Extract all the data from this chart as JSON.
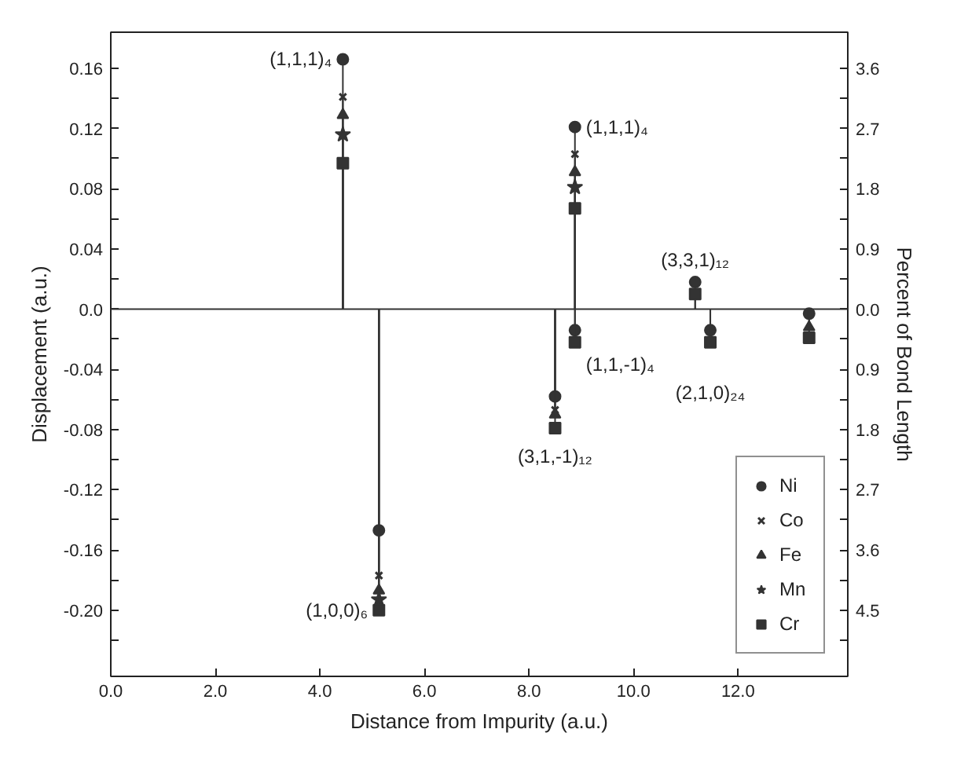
{
  "chart_data": {
    "type": "lollipop",
    "xlabel": "Distance from Impurity (a.u.)",
    "ylabel": "Displacement (a.u.)",
    "y2label": "Percent of Bond Length",
    "x": [
      4.44,
      5.13,
      8.5,
      8.88,
      8.88,
      11.18,
      11.47,
      13.36
    ],
    "series": [
      {
        "name": "Ni",
        "color": "#333333",
        "marker": "circle",
        "values": [
          0.166,
          -0.147,
          -0.058,
          0.121,
          -0.014,
          0.018,
          -0.014,
          -0.003
        ]
      },
      {
        "name": "Co",
        "color": "#333333",
        "marker": "cross",
        "values": [
          0.141,
          -0.177,
          -0.067,
          0.103,
          null,
          null,
          null,
          null
        ]
      },
      {
        "name": "Fe",
        "color": "#333333",
        "marker": "triangle",
        "values": [
          0.129,
          -0.187,
          -0.07,
          0.091,
          null,
          null,
          null,
          -0.012
        ]
      },
      {
        "name": "Mn",
        "color": "#333333",
        "marker": "star",
        "values": [
          0.116,
          -0.193,
          null,
          0.081,
          null,
          null,
          null,
          null
        ]
      },
      {
        "name": "Cr",
        "color": "#333333",
        "marker": "square",
        "values": [
          0.097,
          -0.2,
          -0.079,
          0.067,
          -0.022,
          0.01,
          -0.022,
          -0.019
        ]
      }
    ],
    "xlim": [
      0,
      14.1
    ],
    "ylim": [
      -0.244,
      0.184
    ],
    "y2lim": [
      -5.49,
      4.14
    ],
    "xticks": [
      {
        "value": 0,
        "label": "0.0"
      },
      {
        "value": 2,
        "label": "2.0"
      },
      {
        "value": 4,
        "label": "4.0"
      },
      {
        "value": 6,
        "label": "6.0"
      },
      {
        "value": 8,
        "label": "8.0"
      },
      {
        "value": 10,
        "label": "10.0"
      },
      {
        "value": 12,
        "label": "12.0"
      }
    ],
    "yticks": [
      {
        "value": 0.16,
        "label": "0.16"
      },
      {
        "value": 0.14,
        "label": null
      },
      {
        "value": 0.12,
        "label": "0.12"
      },
      {
        "value": 0.1,
        "label": null
      },
      {
        "value": 0.08,
        "label": "0.08"
      },
      {
        "value": 0.06,
        "label": null
      },
      {
        "value": 0.04,
        "label": "0.04"
      },
      {
        "value": 0.02,
        "label": null
      },
      {
        "value": 0,
        "label": "0.0"
      },
      {
        "value": -0.02,
        "label": null
      },
      {
        "value": -0.04,
        "label": "-0.04"
      },
      {
        "value": -0.06,
        "label": null
      },
      {
        "value": -0.08,
        "label": "-0.08"
      },
      {
        "value": -0.1,
        "label": null
      },
      {
        "value": -0.12,
        "label": "-0.12"
      },
      {
        "value": -0.14,
        "label": null
      },
      {
        "value": -0.16,
        "label": "-0.16"
      },
      {
        "value": -0.18,
        "label": null
      },
      {
        "value": -0.2,
        "label": "-0.20"
      },
      {
        "value": -0.22,
        "label": null
      }
    ],
    "y2ticks": [
      {
        "value": 3.6,
        "label": "3.6"
      },
      {
        "value": 3.15,
        "label": null
      },
      {
        "value": 2.7,
        "label": "2.7"
      },
      {
        "value": 2.25,
        "label": null
      },
      {
        "value": 1.8,
        "label": "1.8"
      },
      {
        "value": 1.35,
        "label": null
      },
      {
        "value": 0.9,
        "label": "0.9"
      },
      {
        "value": 0.45,
        "label": null
      },
      {
        "value": 0,
        "label": "0.0"
      },
      {
        "value": -0.45,
        "label": null
      },
      {
        "value": -0.9,
        "label": "0.9"
      },
      {
        "value": -1.35,
        "label": null
      },
      {
        "value": -1.8,
        "label": "1.8"
      },
      {
        "value": -2.25,
        "label": null
      },
      {
        "value": -2.7,
        "label": "2.7"
      },
      {
        "value": -3.15,
        "label": null
      },
      {
        "value": -3.6,
        "label": "3.6"
      },
      {
        "value": -4.05,
        "label": null
      },
      {
        "value": -4.5,
        "label": "4.5"
      },
      {
        "value": -4.95,
        "label": null
      }
    ],
    "ref_lines": [
      {
        "axis": "y",
        "value": 0,
        "color": "#333333"
      }
    ],
    "legend": "bottom right",
    "annotations": [
      {
        "text": "(1,1,1)₄",
        "x": 4.44,
        "y": 0.166
      },
      {
        "text": "(1,0,0)₆",
        "x": 5.13,
        "y": -0.2
      },
      {
        "text": "(1,1,1)₄",
        "x": 8.88,
        "y": 0.121
      },
      {
        "text": "(1,1,-1)₄",
        "x": 8.88,
        "y": -0.022
      },
      {
        "text": "(3,1,-1)₁₂",
        "x": 8.5,
        "y": -0.079
      },
      {
        "text": "(3,3,1)₁₂",
        "x": 11.18,
        "y": 0.018
      },
      {
        "text": "(2,1,0)₂₄",
        "x": 11.47,
        "y": -0.022
      }
    ]
  }
}
